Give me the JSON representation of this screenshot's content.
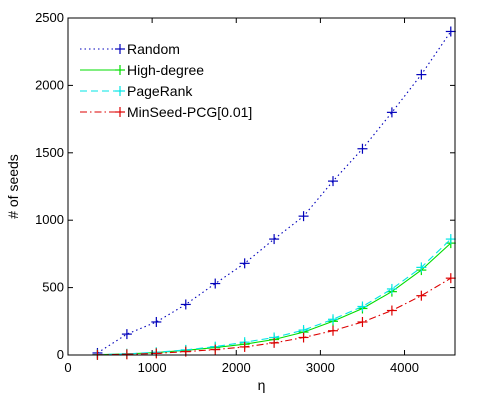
{
  "chart_data": {
    "type": "line",
    "title": "",
    "xlabel": "η",
    "ylabel": "# of seeds",
    "xlim": [
      0,
      4600
    ],
    "ylim": [
      0,
      2500
    ],
    "xticks": [
      0,
      1000,
      2000,
      3000,
      4000
    ],
    "yticks": [
      0,
      500,
      1000,
      1500,
      2000,
      2500
    ],
    "xtick_labels": [
      "0",
      "1000",
      "2000",
      "3000",
      "4000"
    ],
    "ytick_labels": [
      "0",
      "500",
      "1000",
      "1500",
      "2000",
      "2500"
    ],
    "grid": false,
    "legend_position": "top-left",
    "x": [
      350,
      700,
      1050,
      1400,
      1750,
      2100,
      2450,
      2800,
      3150,
      3500,
      3850,
      4200,
      4550
    ],
    "series": [
      {
        "name": "Random",
        "color": "#0000bb",
        "dash": "dotted",
        "marker": "plus",
        "values": [
          15,
          155,
          245,
          375,
          530,
          680,
          860,
          1030,
          1290,
          1530,
          1800,
          2080,
          2400
        ]
      },
      {
        "name": "High-degree",
        "color": "#00dd00",
        "dash": "solid",
        "marker": "plus",
        "values": [
          2,
          8,
          18,
          35,
          55,
          80,
          115,
          170,
          250,
          345,
          470,
          630,
          830
        ]
      },
      {
        "name": "PageRank",
        "color": "#00e5e5",
        "dash": "dashed",
        "marker": "plus",
        "values": [
          2,
          9,
          20,
          38,
          62,
          95,
          130,
          185,
          265,
          360,
          490,
          650,
          860
        ]
      },
      {
        "name": "MinSeed-PCG[0.01]",
        "color": "#dd0000",
        "dash": "dashdot",
        "marker": "plus",
        "values": [
          1,
          5,
          12,
          25,
          40,
          60,
          90,
          130,
          180,
          245,
          330,
          440,
          570
        ]
      }
    ]
  }
}
